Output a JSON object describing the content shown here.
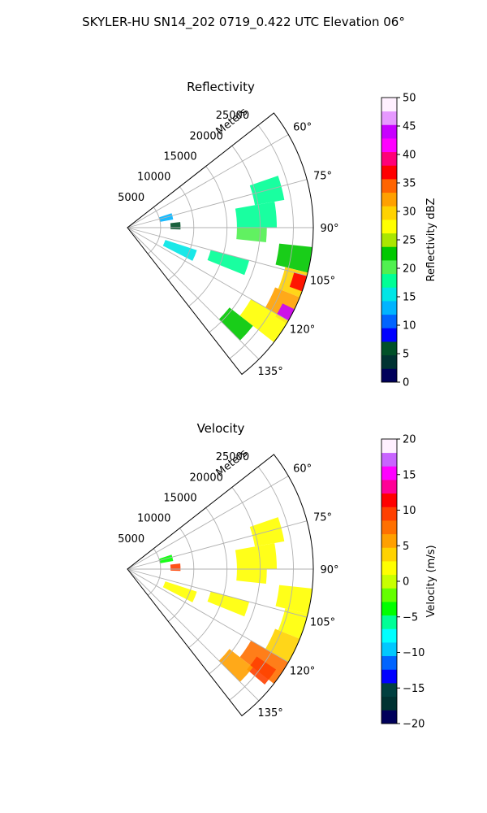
{
  "figure": {
    "suptitle": "SKYLER-HU  SN14_202  0719_0.422 UTC Elevation 06°"
  },
  "chart_data": [
    {
      "type": "heatmap",
      "subtype": "polar-sector",
      "title": "Reflectivity",
      "radial_label": "Meters",
      "radial_ticks": [
        "5000",
        "10000",
        "15000",
        "20000",
        "25000"
      ],
      "radial_values": [
        5000,
        10000,
        15000,
        20000,
        25000
      ],
      "rlim": [
        0,
        28000
      ],
      "azimuth_ticks": [
        "60°",
        "75°",
        "90°",
        "105°",
        "120°",
        "135°"
      ],
      "azimuth_values": [
        60,
        75,
        90,
        105,
        120,
        135
      ],
      "azimuth_range": [
        52,
        142
      ],
      "grid": true,
      "colorbar": {
        "label": "Reflectivity dBZ",
        "range": [
          0,
          50
        ],
        "ticks": [
          "0",
          "5",
          "10",
          "15",
          "20",
          "25",
          "30",
          "35",
          "40",
          "45",
          "50"
        ],
        "tick_values": [
          0,
          5,
          10,
          15,
          20,
          25,
          30,
          35,
          40,
          45,
          50
        ],
        "colors": [
          "#00005a",
          "#003232",
          "#005028",
          "#0000ff",
          "#0064ff",
          "#00b4ff",
          "#00e6e6",
          "#00ff96",
          "#50f050",
          "#00c800",
          "#aae600",
          "#ffff00",
          "#ffd200",
          "#ffa000",
          "#ff6400",
          "#ff0000",
          "#ff0078",
          "#ff00ff",
          "#c800ff",
          "#e699ff",
          "#fff0ff"
        ]
      },
      "echo_regions": [
        {
          "az": [
            71,
            80
          ],
          "r": [
            19500,
            24000
          ],
          "value": 18
        },
        {
          "az": [
            80,
            90
          ],
          "r": [
            16500,
            22500
          ],
          "value": 17
        },
        {
          "az": [
            90,
            96
          ],
          "r": [
            16500,
            21000
          ],
          "value": 21
        },
        {
          "az": [
            96,
            104
          ],
          "r": [
            23000,
            28000
          ],
          "value": 22
        },
        {
          "az": [
            104,
            112
          ],
          "r": [
            24500,
            28000
          ],
          "value": 30
        },
        {
          "az": [
            105,
            110
          ],
          "r": [
            26000,
            28000
          ],
          "value": 38
        },
        {
          "az": [
            112,
            120
          ],
          "r": [
            24000,
            28000
          ],
          "value": 32
        },
        {
          "az": [
            116,
            121
          ],
          "r": [
            26000,
            28000
          ],
          "value": 44
        },
        {
          "az": [
            120,
            128
          ],
          "r": [
            21500,
            28000
          ],
          "value": 27
        },
        {
          "az": [
            128,
            135
          ],
          "r": [
            19500,
            24000
          ],
          "value": 22
        },
        {
          "az": [
            105,
            112
          ],
          "r": [
            13000,
            19000
          ],
          "value": 17
        },
        {
          "az": [
            108,
            117
          ],
          "r": [
            6000,
            11000
          ],
          "value": 15
        },
        {
          "az": [
            72,
            80
          ],
          "r": [
            5000,
            7000
          ],
          "value": 12
        },
        {
          "az": [
            84,
            92
          ],
          "r": [
            6500,
            8000
          ],
          "value": 5
        }
      ]
    },
    {
      "type": "heatmap",
      "subtype": "polar-sector",
      "title": "Velocity",
      "radial_label": "Meters",
      "radial_ticks": [
        "5000",
        "10000",
        "15000",
        "20000",
        "25000"
      ],
      "radial_values": [
        5000,
        10000,
        15000,
        20000,
        25000
      ],
      "rlim": [
        0,
        28000
      ],
      "azimuth_ticks": [
        "60°",
        "75°",
        "90°",
        "105°",
        "120°",
        "135°"
      ],
      "azimuth_values": [
        60,
        75,
        90,
        105,
        120,
        135
      ],
      "azimuth_range": [
        52,
        142
      ],
      "grid": true,
      "colorbar": {
        "label": "Velocity (m/s)",
        "range": [
          -20,
          20
        ],
        "ticks": [
          "−20",
          "−15",
          "−10",
          "−5",
          "0",
          "5",
          "10",
          "15",
          "20"
        ],
        "tick_values": [
          -20,
          -15,
          -10,
          -5,
          0,
          5,
          10,
          15,
          20
        ],
        "colors": [
          "#00005a",
          "#003232",
          "#004040",
          "#0000ff",
          "#0064ff",
          "#00c8ff",
          "#00ffff",
          "#00ff96",
          "#00ff00",
          "#64ff00",
          "#c8ff00",
          "#ffff00",
          "#ffd200",
          "#ffa000",
          "#ff7000",
          "#ff4000",
          "#ff0000",
          "#ff0096",
          "#ff00ff",
          "#c864ff",
          "#fff0ff"
        ]
      },
      "echo_regions": [
        {
          "az": [
            71,
            80
          ],
          "r": [
            19500,
            24000
          ],
          "value": 2
        },
        {
          "az": [
            80,
            90
          ],
          "r": [
            16500,
            22500
          ],
          "value": 1
        },
        {
          "az": [
            90,
            96
          ],
          "r": [
            16500,
            21000
          ],
          "value": 1.5
        },
        {
          "az": [
            96,
            104
          ],
          "r": [
            23000,
            28000
          ],
          "value": 2
        },
        {
          "az": [
            104,
            112
          ],
          "r": [
            24500,
            28000
          ],
          "value": 2.5
        },
        {
          "az": [
            112,
            120
          ],
          "r": [
            24000,
            28000
          ],
          "value": 4
        },
        {
          "az": [
            120,
            128
          ],
          "r": [
            21500,
            28000
          ],
          "value": 8
        },
        {
          "az": [
            124,
            130
          ],
          "r": [
            23500,
            27000
          ],
          "value": 10
        },
        {
          "az": [
            128,
            135
          ],
          "r": [
            19500,
            24000
          ],
          "value": 6
        },
        {
          "az": [
            105,
            112
          ],
          "r": [
            13000,
            19000
          ],
          "value": 2
        },
        {
          "az": [
            108,
            117
          ],
          "r": [
            6000,
            11000
          ],
          "value": 2
        },
        {
          "az": [
            72,
            80
          ],
          "r": [
            5000,
            7000
          ],
          "value": -4
        },
        {
          "az": [
            84,
            92
          ],
          "r": [
            6500,
            8000
          ],
          "value": 9
        }
      ]
    }
  ]
}
